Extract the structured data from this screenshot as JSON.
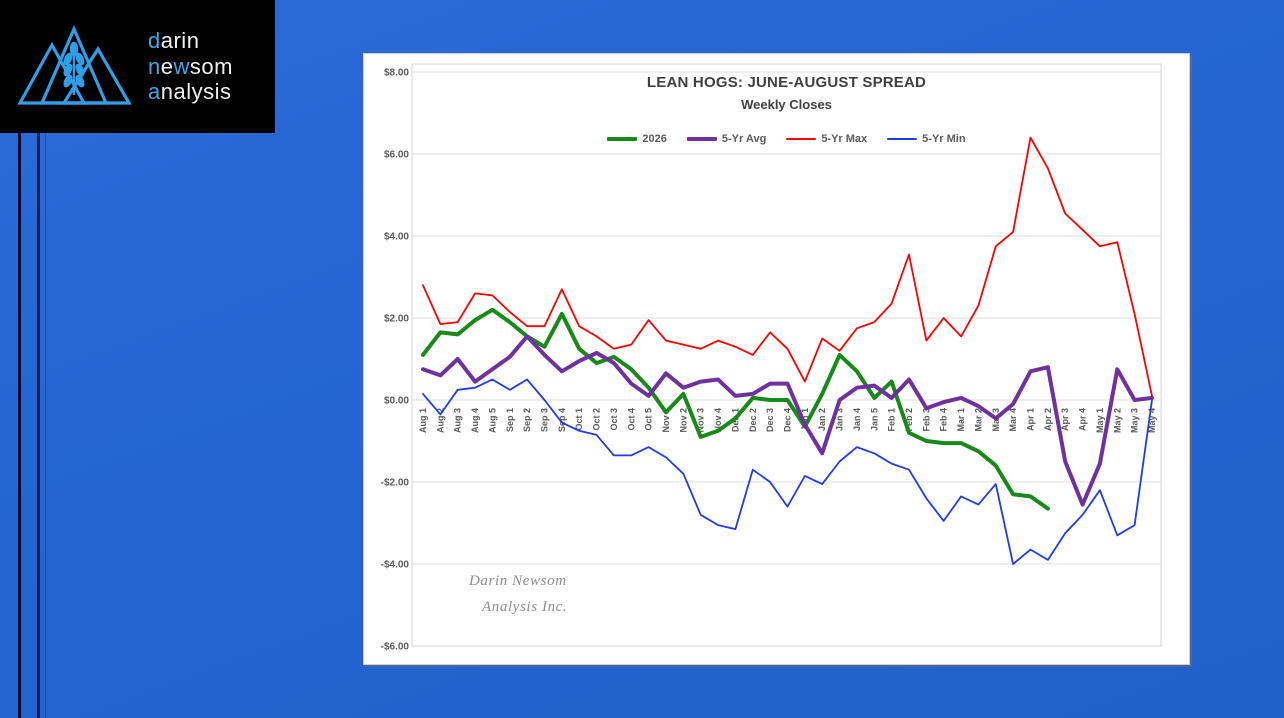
{
  "desktop": {
    "background": "#2465D2",
    "stripe_colors": [
      "#070b18",
      "#0c1f63",
      "#1d4fae"
    ]
  },
  "logo": {
    "background": "#000000",
    "accent_color": "#3FA5EC",
    "text_color": "#F0F0F0",
    "icon": "mountains-wheat",
    "lines": [
      [
        {
          "t": "d",
          "accent": true
        },
        {
          "t": "arin",
          "accent": false
        }
      ],
      [
        {
          "t": "n",
          "accent": true
        },
        {
          "t": "e",
          "accent": false
        },
        {
          "t": "w",
          "accent": true
        },
        {
          "t": "som",
          "accent": false
        }
      ],
      [
        {
          "t": "a",
          "accent": true
        },
        {
          "t": "nalysis",
          "accent": false
        }
      ]
    ]
  },
  "chart_data": {
    "type": "line",
    "title": "LEAN HOGS: JUNE-AUGUST SPREAD",
    "subtitle": "Weekly Closes",
    "watermark": [
      "Darin Newsom",
      "Analysis Inc."
    ],
    "legend_position": "top",
    "grid": "horizontal",
    "ylim": [
      -6,
      8
    ],
    "y_tick_step": 2,
    "y_tick_labels": [
      "$8.00",
      "$6.00",
      "$4.00",
      "$2.00",
      "$0.00",
      "-$2.00",
      "-$4.00",
      "-$6.00"
    ],
    "categories": [
      "Aug 1",
      "Aug 2",
      "Aug 3",
      "Aug 4",
      "Aug 5",
      "Sep 1",
      "Sep 2",
      "Sep 3",
      "Sep 4",
      "Oct 1",
      "Oct 2",
      "Oct 3",
      "Oct 4",
      "Oct 5",
      "Nov 1",
      "Nov 2",
      "Nov 3",
      "Nov 4",
      "Dec 1",
      "Dec 2",
      "Dec 3",
      "Dec 4",
      "Jan 1",
      "Jan 2",
      "Jan 3",
      "Jan 4",
      "Jan 5",
      "Feb 1",
      "Feb 2",
      "Feb 3",
      "Feb 4",
      "Mar 1",
      "Mar 2",
      "Mar 3",
      "Mar 4",
      "Apr 1",
      "Apr 2",
      "Apr 3",
      "Apr 4",
      "May 1",
      "May 2",
      "May 3",
      "May 4"
    ],
    "series": [
      {
        "name": "2026",
        "color": "#178A17",
        "stroke_width": 4,
        "values": [
          1.1,
          1.65,
          1.6,
          1.95,
          2.2,
          1.9,
          1.55,
          1.3,
          2.1,
          1.25,
          0.9,
          1.05,
          0.75,
          0.3,
          -0.3,
          0.15,
          -0.9,
          -0.75,
          -0.45,
          0.05,
          0,
          0,
          -0.65,
          0.15,
          1.1,
          0.7,
          0.05,
          0.45,
          -0.8,
          -1,
          -1.05,
          -1.05,
          -1.25,
          -1.6,
          -2.3,
          -2.35,
          -2.65,
          null,
          null,
          null,
          null,
          null,
          null
        ]
      },
      {
        "name": "5-Yr Avg",
        "color": "#7030A0",
        "stroke_width": 4,
        "values": [
          0.75,
          0.6,
          1,
          0.45,
          0.75,
          1.05,
          1.55,
          1.1,
          0.7,
          0.95,
          1.15,
          0.9,
          0.4,
          0.1,
          0.65,
          0.3,
          0.45,
          0.5,
          0.1,
          0.15,
          0.4,
          0.4,
          -0.6,
          -1.3,
          0,
          0.3,
          0.35,
          0.05,
          0.5,
          -0.2,
          -0.05,
          0.05,
          -0.15,
          -0.45,
          -0.1,
          0.7,
          0.8,
          -1.5,
          -2.55,
          -1.55,
          0.75,
          0,
          0.05
        ]
      },
      {
        "name": "5-Yr Max",
        "color": "#FF0000",
        "stroke_width": 1.8,
        "values": [
          2.8,
          1.85,
          1.9,
          2.6,
          2.55,
          2.15,
          1.8,
          1.8,
          2.7,
          1.8,
          1.55,
          1.25,
          1.35,
          1.95,
          1.45,
          1.35,
          1.25,
          1.45,
          1.3,
          1.1,
          1.65,
          1.25,
          0.45,
          1.5,
          1.2,
          1.75,
          1.9,
          2.35,
          3.55,
          1.45,
          2,
          1.55,
          2.3,
          3.75,
          4.1,
          6.4,
          5.65,
          4.55,
          4.15,
          3.75,
          3.85,
          2.1,
          0.1
        ]
      },
      {
        "name": "5-Yr Min",
        "color": "#1E3CEB",
        "stroke_width": 1.8,
        "values": [
          0.15,
          -0.35,
          0.25,
          0.3,
          0.5,
          0.25,
          0.5,
          0,
          -0.55,
          -0.75,
          -0.85,
          -1.35,
          -1.35,
          -1.15,
          -1.4,
          -1.8,
          -2.8,
          -3.05,
          -3.15,
          -1.7,
          -2,
          -2.6,
          -1.85,
          -2.05,
          -1.5,
          -1.15,
          -1.3,
          -1.55,
          -1.7,
          -2.4,
          -2.95,
          -2.35,
          -2.55,
          -2.05,
          -4,
          -3.65,
          -3.9,
          -3.25,
          -2.8,
          -2.2,
          -3.3,
          -3.05,
          0
        ]
      }
    ]
  }
}
